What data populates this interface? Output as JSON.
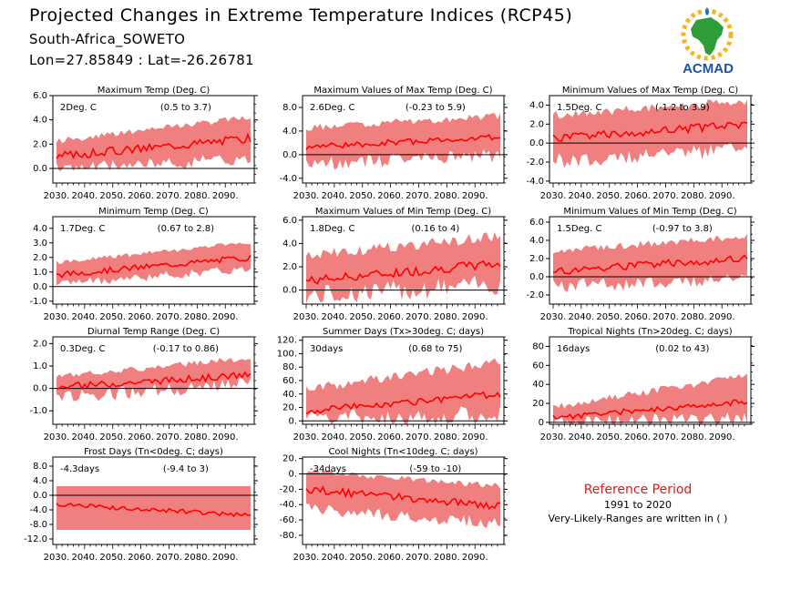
{
  "header": {
    "title": "Projected Changes in Extreme Temperature Indices (RCP45)",
    "location": "South-Africa_SOWETO",
    "coords": "Lon=27.85849 : Lat=-26.26781",
    "logo_text": "ACMAD"
  },
  "note": {
    "title": "Reference Period",
    "period": "1991 to 2020",
    "vlr": "Very-Likely-Ranges are written in ( )"
  },
  "colors": {
    "band": "#f08080",
    "line": "#ff0000",
    "zero": "#000000",
    "note_title": "#d81b1b"
  },
  "x_ticks": [
    "2030.",
    "2040.",
    "2050.",
    "2060.",
    "2070.",
    "2080.",
    "2090."
  ],
  "chart_data": [
    {
      "type": "area",
      "title": "Maximum Temp (Deg. C)",
      "mean": "2Deg. C",
      "range": "(0.5 to 3.7)",
      "ylim": [
        -1.2,
        6.0
      ],
      "yticks": [
        6.0,
        4.0,
        2.0,
        0.0
      ],
      "ytick_labels": [
        "6.0",
        "4.0",
        "2.0",
        "0.0"
      ],
      "start": [
        1.0,
        0.0,
        2.0
      ],
      "end": [
        2.5,
        0.8,
        4.0
      ],
      "var_line": 0.35,
      "var_band": 0.5
    },
    {
      "type": "area",
      "title": "Maximum Values of Max Temp (Deg. C)",
      "mean": "2.6Deg. C",
      "range": "(-0.23 to 5.9)",
      "ylim": [
        -4.8,
        10.0
      ],
      "yticks": [
        8.0,
        4.0,
        0.0,
        -4.0
      ],
      "ytick_labels": [
        "8.0",
        "4.0",
        "0.0",
        "-4.0"
      ],
      "start": [
        1.3,
        -1.5,
        4.0
      ],
      "end": [
        3.0,
        -0.2,
        6.0
      ],
      "var_line": 0.5,
      "var_band": 1.2
    },
    {
      "type": "area",
      "title": "Minimum Values of Max Temp (Deg. C)",
      "mean": "1.5Deg. C",
      "range": "(-1.2 to 3.9)",
      "ylim": [
        -4.2,
        5.0
      ],
      "yticks": [
        4.0,
        2.0,
        0.0,
        -2.0,
        -4.0
      ],
      "ytick_labels": [
        "4.0",
        "2.0",
        "0.0",
        "-2.0",
        "-4.0"
      ],
      "start": [
        0.5,
        -2.0,
        2.5
      ],
      "end": [
        2.0,
        -0.5,
        4.0
      ],
      "var_line": 0.45,
      "var_band": 0.9
    },
    {
      "type": "area",
      "title": "Minimum Temp (Deg. C)",
      "mean": "1.7Deg. C",
      "range": "(0.67 to 2.8)",
      "ylim": [
        -1.2,
        4.8
      ],
      "yticks": [
        4.0,
        3.0,
        2.0,
        1.0,
        0.0,
        -1.0
      ],
      "ytick_labels": [
        "4.0",
        "3.0",
        "2.0",
        "1.0",
        "0.0",
        "-1.0"
      ],
      "start": [
        0.8,
        0.2,
        1.5
      ],
      "end": [
        2.0,
        1.2,
        2.9
      ],
      "var_line": 0.2,
      "var_band": 0.3
    },
    {
      "type": "area",
      "title": "Maximum Values of Min Temp (Deg. C)",
      "mean": "1.8Deg. C",
      "range": "(0.16 to 4)",
      "ylim": [
        -1.2,
        6.3
      ],
      "yticks": [
        6.0,
        4.0,
        2.0,
        0.0
      ],
      "ytick_labels": [
        "6.0",
        "4.0",
        "2.0",
        "0.0"
      ],
      "start": [
        0.8,
        -0.5,
        2.5
      ],
      "end": [
        2.3,
        0.5,
        4.2
      ],
      "var_line": 0.4,
      "var_band": 0.9
    },
    {
      "type": "area",
      "title": "Minimum Values of Min Temp (Deg. C)",
      "mean": "1.5Deg. C",
      "range": "(-0.97 to 3.8)",
      "ylim": [
        -3.0,
        6.6
      ],
      "yticks": [
        6.0,
        4.0,
        2.0,
        0.0,
        -2.0
      ],
      "ytick_labels": [
        "6.0",
        "4.0",
        "2.0",
        "0.0",
        "-2.0"
      ],
      "start": [
        0.6,
        -1.0,
        2.5
      ],
      "end": [
        2.0,
        -0.3,
        4.0
      ],
      "var_line": 0.45,
      "var_band": 0.8
    },
    {
      "type": "area",
      "title": "Diurnal Temp Range (Deg. C)",
      "mean": "0.3Deg. C",
      "range": "(-0.17 to 0.86)",
      "ylim": [
        -1.6,
        2.3
      ],
      "yticks": [
        2.0,
        1.0,
        0.0,
        -1.0
      ],
      "ytick_labels": [
        "2.0",
        "1.0",
        "0.0",
        "-1.0"
      ],
      "start": [
        0.05,
        -0.4,
        0.4
      ],
      "end": [
        0.6,
        0.2,
        1.2
      ],
      "var_line": 0.15,
      "var_band": 0.3
    },
    {
      "type": "area",
      "title": "Summer Days (Tx>30deg. C; days)",
      "mean": "30days",
      "range": "(0.68 to 75)",
      "ylim": [
        -5,
        125
      ],
      "yticks": [
        120,
        100,
        80,
        60,
        40,
        20,
        0
      ],
      "ytick_labels": [
        "120.",
        "100.",
        "80.",
        "60.",
        "40.",
        "20.",
        "0."
      ],
      "start": [
        15,
        3,
        40
      ],
      "end": [
        40,
        8,
        80
      ],
      "var_line": 5,
      "var_band": 15
    },
    {
      "type": "area",
      "title": "Tropical Nights (Tn>20deg. C; days)",
      "mean": "16days",
      "range": "(0.02 to 43)",
      "ylim": [
        -2,
        90
      ],
      "yticks": [
        80,
        60,
        40,
        20,
        0
      ],
      "ytick_labels": [
        "80",
        "60",
        "40",
        "20",
        "0"
      ],
      "start": [
        5,
        0.5,
        12
      ],
      "end": [
        22,
        3,
        45
      ],
      "var_line": 3,
      "var_band": 8
    },
    {
      "type": "area",
      "title": "Frost Days (Tn<0deg. C; days)",
      "mean": "-4.3days",
      "range": "(-9.4 to 3)",
      "ylim": [
        -13.5,
        10.5
      ],
      "yticks": [
        8.0,
        4.0,
        0.0,
        -4.0,
        -8.0,
        -12.0
      ],
      "ytick_labels": [
        "8.0",
        "4.0",
        "0.0",
        "-4.0",
        "-8.0",
        "-12.0"
      ],
      "start": [
        -2.5,
        -9.5,
        2.5
      ],
      "end": [
        -5.5,
        -9.5,
        2.5
      ],
      "var_line": 0.6,
      "var_band": 0
    },
    {
      "type": "area",
      "title": "Cool Nights (Tn<10deg. C; days)",
      "mean": "-34days",
      "range": "(-59 to -10)",
      "ylim": [
        -92,
        22
      ],
      "yticks": [
        20,
        0,
        -20,
        -40,
        -60,
        -80
      ],
      "ytick_labels": [
        "20.",
        "0.",
        "-20.",
        "-40.",
        "-60.",
        "-80."
      ],
      "start": [
        -20,
        -45,
        0
      ],
      "end": [
        -42,
        -65,
        -20
      ],
      "var_line": 5,
      "var_band": 8
    }
  ]
}
